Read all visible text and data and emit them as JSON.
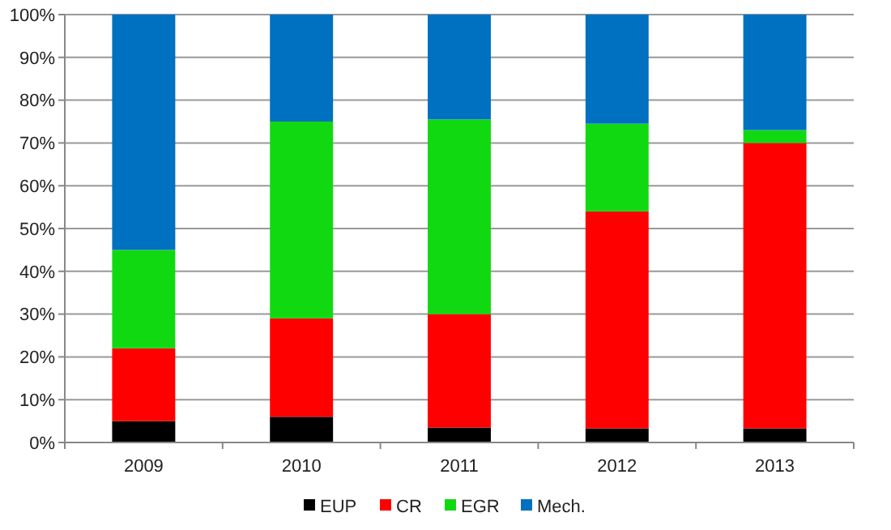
{
  "chart_data": {
    "type": "bar",
    "stacked": true,
    "categories": [
      "2009",
      "2010",
      "2011",
      "2012",
      "2013"
    ],
    "series": [
      {
        "name": "EUP",
        "color": "#000000",
        "values": [
          5,
          6,
          3.5,
          3.3,
          3.3
        ]
      },
      {
        "name": "CR",
        "color": "#ff0000",
        "values": [
          17,
          23,
          26.5,
          50.7,
          66.7
        ]
      },
      {
        "name": "EGR",
        "color": "#11d911",
        "values": [
          23,
          46,
          45.5,
          20.5,
          3
        ]
      },
      {
        "name": "Mech.",
        "color": "#0070c0",
        "values": [
          55,
          25,
          24.5,
          25.5,
          27
        ]
      }
    ],
    "ylim": [
      0,
      100
    ],
    "yticks": [
      {
        "value": 0,
        "label": "0%"
      },
      {
        "value": 10,
        "label": "10%"
      },
      {
        "value": 20,
        "label": "20%"
      },
      {
        "value": 30,
        "label": "30%"
      },
      {
        "value": 40,
        "label": "40%"
      },
      {
        "value": 50,
        "label": "50%"
      },
      {
        "value": 60,
        "label": "60%"
      },
      {
        "value": 70,
        "label": "70%"
      },
      {
        "value": 80,
        "label": "80%"
      },
      {
        "value": 90,
        "label": "90%"
      },
      {
        "value": 100,
        "label": "100%"
      }
    ],
    "grid": "y",
    "legend": "bottom"
  }
}
